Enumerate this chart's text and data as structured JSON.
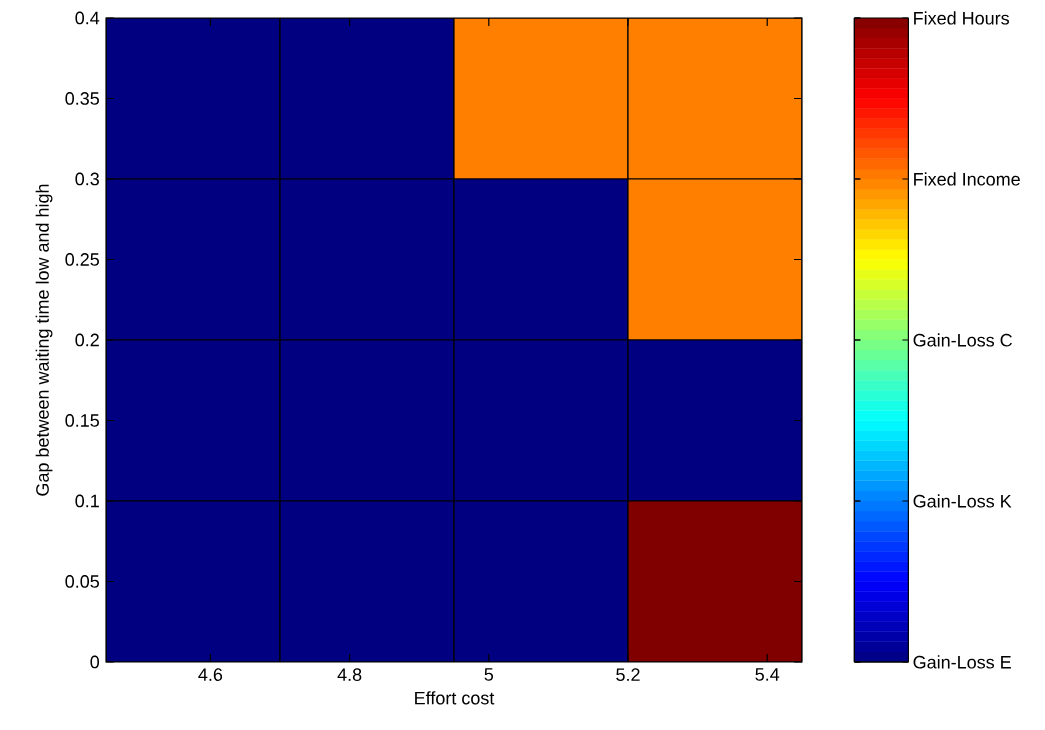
{
  "chart_data": {
    "type": "heatmap",
    "xlabel": "Effort cost",
    "ylabel": "Gap between waiting time low and high",
    "x": [
      4.575,
      4.825,
      5.075,
      5.325
    ],
    "y": [
      0.35,
      0.25,
      0.15,
      0.05
    ],
    "cells": [
      [
        1,
        1,
        4,
        4
      ],
      [
        1,
        1,
        1,
        4
      ],
      [
        1,
        1,
        1,
        1
      ],
      [
        1,
        1,
        1,
        5
      ]
    ],
    "xlim": [
      4.45,
      5.45
    ],
    "ylim": [
      0,
      0.4
    ],
    "xticks": [
      4.6,
      4.8,
      5,
      5.2,
      5.4
    ],
    "yticks": [
      0,
      0.05,
      0.1,
      0.15,
      0.2,
      0.25,
      0.3,
      0.35,
      0.4
    ],
    "clim": [
      1,
      5
    ],
    "cticks": [
      {
        "value": 1,
        "label": "Gain-Loss E"
      },
      {
        "value": 2,
        "label": "Gain-Loss K"
      },
      {
        "value": 3,
        "label": "Gain-Loss C"
      },
      {
        "value": 4,
        "label": "Fixed Income"
      },
      {
        "value": 5,
        "label": "Fixed Hours"
      }
    ]
  }
}
